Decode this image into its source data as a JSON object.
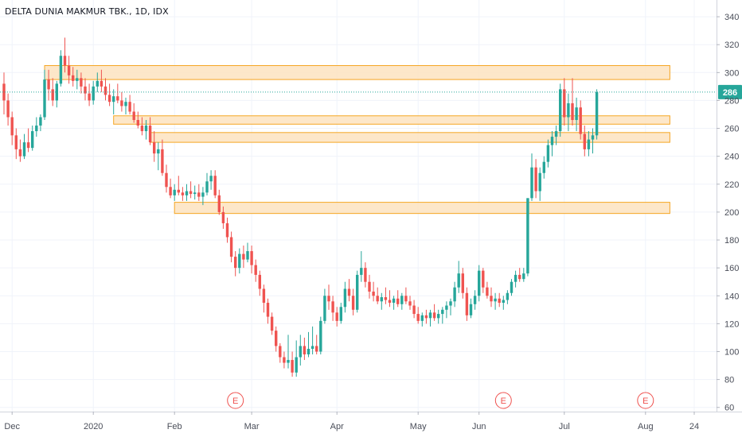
{
  "chart_data": {
    "type": "candlestick",
    "title": "DELTA DUNIA MAKMUR TBK., 1D, IDX",
    "last_price_label": "286",
    "last_price": 286,
    "ylim": [
      57,
      352
    ],
    "y_ticks": [
      60,
      80,
      100,
      120,
      140,
      160,
      180,
      200,
      220,
      240,
      260,
      280,
      300,
      320,
      340
    ],
    "x_ticks": [
      {
        "label": "Dec",
        "bar": 2
      },
      {
        "label": "2020",
        "bar": 22
      },
      {
        "label": "Feb",
        "bar": 42
      },
      {
        "label": "Mar",
        "bar": 61
      },
      {
        "label": "Apr",
        "bar": 82
      },
      {
        "label": "May",
        "bar": 102
      },
      {
        "label": "Jun",
        "bar": 117
      },
      {
        "label": "Jul",
        "bar": 138
      },
      {
        "label": "Aug",
        "bar": 158
      },
      {
        "label": "24",
        "bar": 170
      }
    ],
    "earnings_markers": [
      {
        "label": "E",
        "bar": 57
      },
      {
        "label": "E",
        "bar": 123
      },
      {
        "label": "E",
        "bar": 158
      }
    ],
    "zones": [
      {
        "from_bar": 10,
        "to_bar": 164,
        "low": 295,
        "high": 305
      },
      {
        "from_bar": 27,
        "to_bar": 164,
        "low": 263,
        "high": 269
      },
      {
        "from_bar": 36,
        "to_bar": 164,
        "low": 250,
        "high": 257
      },
      {
        "from_bar": 42,
        "to_bar": 164,
        "low": 199,
        "high": 207
      }
    ],
    "colors": {
      "up": "#26a69a",
      "down": "#ef5350",
      "zone_fill": "#fde3c0",
      "zone_border": "#f5a623",
      "price_line": "#26a69a",
      "earnings": "#ef5350"
    },
    "candles": [
      [
        292,
        300,
        270,
        280
      ],
      [
        280,
        285,
        262,
        268
      ],
      [
        268,
        272,
        248,
        255
      ],
      [
        255,
        260,
        238,
        245
      ],
      [
        245,
        252,
        236,
        240
      ],
      [
        240,
        256,
        238,
        250
      ],
      [
        250,
        260,
        243,
        246
      ],
      [
        246,
        262,
        244,
        258
      ],
      [
        258,
        268,
        254,
        262
      ],
      [
        262,
        270,
        258,
        268
      ],
      [
        268,
        302,
        266,
        295
      ],
      [
        295,
        302,
        280,
        288
      ],
      [
        288,
        296,
        276,
        280
      ],
      [
        280,
        294,
        275,
        292
      ],
      [
        292,
        316,
        290,
        312
      ],
      [
        312,
        325,
        300,
        305
      ],
      [
        305,
        312,
        292,
        298
      ],
      [
        298,
        304,
        290,
        294
      ],
      [
        294,
        302,
        288,
        296
      ],
      [
        296,
        300,
        285,
        290
      ],
      [
        290,
        296,
        280,
        285
      ],
      [
        285,
        292,
        276,
        280
      ],
      [
        280,
        294,
        277,
        290
      ],
      [
        290,
        300,
        286,
        294
      ],
      [
        294,
        302,
        286,
        290
      ],
      [
        290,
        296,
        280,
        284
      ],
      [
        284,
        292,
        276,
        279
      ],
      [
        279,
        288,
        270,
        283
      ],
      [
        283,
        292,
        278,
        280
      ],
      [
        280,
        286,
        272,
        276
      ],
      [
        276,
        282,
        270,
        279
      ],
      [
        279,
        284,
        270,
        272
      ],
      [
        272,
        278,
        264,
        266
      ],
      [
        266,
        272,
        260,
        262
      ],
      [
        262,
        268,
        255,
        258
      ],
      [
        258,
        266,
        252,
        262
      ],
      [
        262,
        268,
        248,
        250
      ],
      [
        250,
        258,
        236,
        242
      ],
      [
        242,
        250,
        230,
        245
      ],
      [
        245,
        252,
        226,
        228
      ],
      [
        228,
        234,
        214,
        218
      ],
      [
        218,
        224,
        210,
        212
      ],
      [
        212,
        220,
        208,
        216
      ],
      [
        216,
        226,
        212,
        214
      ],
      [
        214,
        218,
        208,
        212
      ],
      [
        212,
        220,
        208,
        215
      ],
      [
        215,
        222,
        210,
        213
      ],
      [
        213,
        219,
        209,
        214
      ],
      [
        214,
        220,
        208,
        211
      ],
      [
        211,
        218,
        205,
        214
      ],
      [
        214,
        228,
        212,
        222
      ],
      [
        222,
        230,
        216,
        226
      ],
      [
        226,
        230,
        210,
        212
      ],
      [
        212,
        216,
        198,
        200
      ],
      [
        200,
        204,
        188,
        192
      ],
      [
        192,
        196,
        178,
        182
      ],
      [
        182,
        186,
        164,
        168
      ],
      [
        168,
        172,
        154,
        160
      ],
      [
        160,
        174,
        156,
        170
      ],
      [
        170,
        176,
        160,
        166
      ],
      [
        166,
        178,
        164,
        172
      ],
      [
        172,
        176,
        156,
        162
      ],
      [
        162,
        166,
        150,
        155
      ],
      [
        155,
        158,
        140,
        145
      ],
      [
        145,
        148,
        128,
        135
      ],
      [
        135,
        138,
        120,
        125
      ],
      [
        125,
        128,
        112,
        115
      ],
      [
        115,
        118,
        100,
        104
      ],
      [
        104,
        106,
        92,
        96
      ],
      [
        96,
        100,
        88,
        92
      ],
      [
        92,
        112,
        88,
        94
      ],
      [
        94,
        100,
        82,
        85
      ],
      [
        85,
        108,
        82,
        96
      ],
      [
        96,
        112,
        90,
        104
      ],
      [
        104,
        110,
        94,
        98
      ],
      [
        98,
        114,
        96,
        102
      ],
      [
        102,
        118,
        98,
        104
      ],
      [
        104,
        112,
        98,
        100
      ],
      [
        100,
        125,
        98,
        122
      ],
      [
        122,
        145,
        120,
        140
      ],
      [
        140,
        148,
        130,
        136
      ],
      [
        136,
        140,
        122,
        128
      ],
      [
        128,
        132,
        118,
        122
      ],
      [
        122,
        135,
        120,
        132
      ],
      [
        132,
        150,
        128,
        145
      ],
      [
        145,
        152,
        136,
        140
      ],
      [
        140,
        145,
        126,
        130
      ],
      [
        130,
        158,
        128,
        155
      ],
      [
        155,
        172,
        150,
        160
      ],
      [
        160,
        164,
        146,
        150
      ],
      [
        150,
        155,
        138,
        143
      ],
      [
        143,
        150,
        136,
        140
      ],
      [
        140,
        146,
        134,
        136
      ],
      [
        136,
        142,
        130,
        139
      ],
      [
        139,
        146,
        134,
        137
      ],
      [
        137,
        144,
        132,
        135
      ],
      [
        135,
        140,
        130,
        138
      ],
      [
        138,
        144,
        132,
        134
      ],
      [
        134,
        142,
        130,
        140
      ],
      [
        140,
        146,
        134,
        136
      ],
      [
        136,
        140,
        130,
        133
      ],
      [
        133,
        137,
        124,
        127
      ],
      [
        127,
        132,
        120,
        122
      ],
      [
        122,
        128,
        118,
        126
      ],
      [
        126,
        130,
        120,
        124
      ],
      [
        124,
        130,
        118,
        128
      ],
      [
        128,
        134,
        122,
        124
      ],
      [
        124,
        130,
        120,
        127
      ],
      [
        127,
        132,
        120,
        130
      ],
      [
        130,
        136,
        124,
        133
      ],
      [
        133,
        138,
        126,
        136
      ],
      [
        136,
        150,
        132,
        146
      ],
      [
        146,
        165,
        142,
        156
      ],
      [
        156,
        160,
        138,
        142
      ],
      [
        142,
        146,
        122,
        126
      ],
      [
        126,
        138,
        124,
        134
      ],
      [
        134,
        144,
        130,
        140
      ],
      [
        140,
        162,
        136,
        158
      ],
      [
        158,
        160,
        142,
        146
      ],
      [
        146,
        150,
        138,
        140
      ],
      [
        140,
        146,
        132,
        136
      ],
      [
        136,
        142,
        130,
        138
      ],
      [
        138,
        142,
        132,
        135
      ],
      [
        135,
        140,
        130,
        137
      ],
      [
        137,
        144,
        134,
        142
      ],
      [
        142,
        152,
        140,
        150
      ],
      [
        150,
        158,
        146,
        155
      ],
      [
        155,
        160,
        150,
        152
      ],
      [
        152,
        160,
        150,
        156
      ],
      [
        156,
        210,
        154,
        210
      ],
      [
        210,
        242,
        208,
        232
      ],
      [
        232,
        238,
        210,
        215
      ],
      [
        215,
        232,
        208,
        228
      ],
      [
        228,
        240,
        224,
        236
      ],
      [
        236,
        252,
        232,
        248
      ],
      [
        248,
        258,
        240,
        254
      ],
      [
        254,
        262,
        248,
        258
      ],
      [
        258,
        292,
        254,
        288
      ],
      [
        288,
        296,
        262,
        268
      ],
      [
        268,
        285,
        258,
        278
      ],
      [
        278,
        296,
        262,
        266
      ],
      [
        266,
        282,
        258,
        275
      ],
      [
        275,
        280,
        252,
        256
      ],
      [
        256,
        262,
        240,
        245
      ],
      [
        245,
        258,
        240,
        252
      ],
      [
        252,
        260,
        242,
        255
      ],
      [
        255,
        288,
        252,
        286
      ]
    ]
  }
}
